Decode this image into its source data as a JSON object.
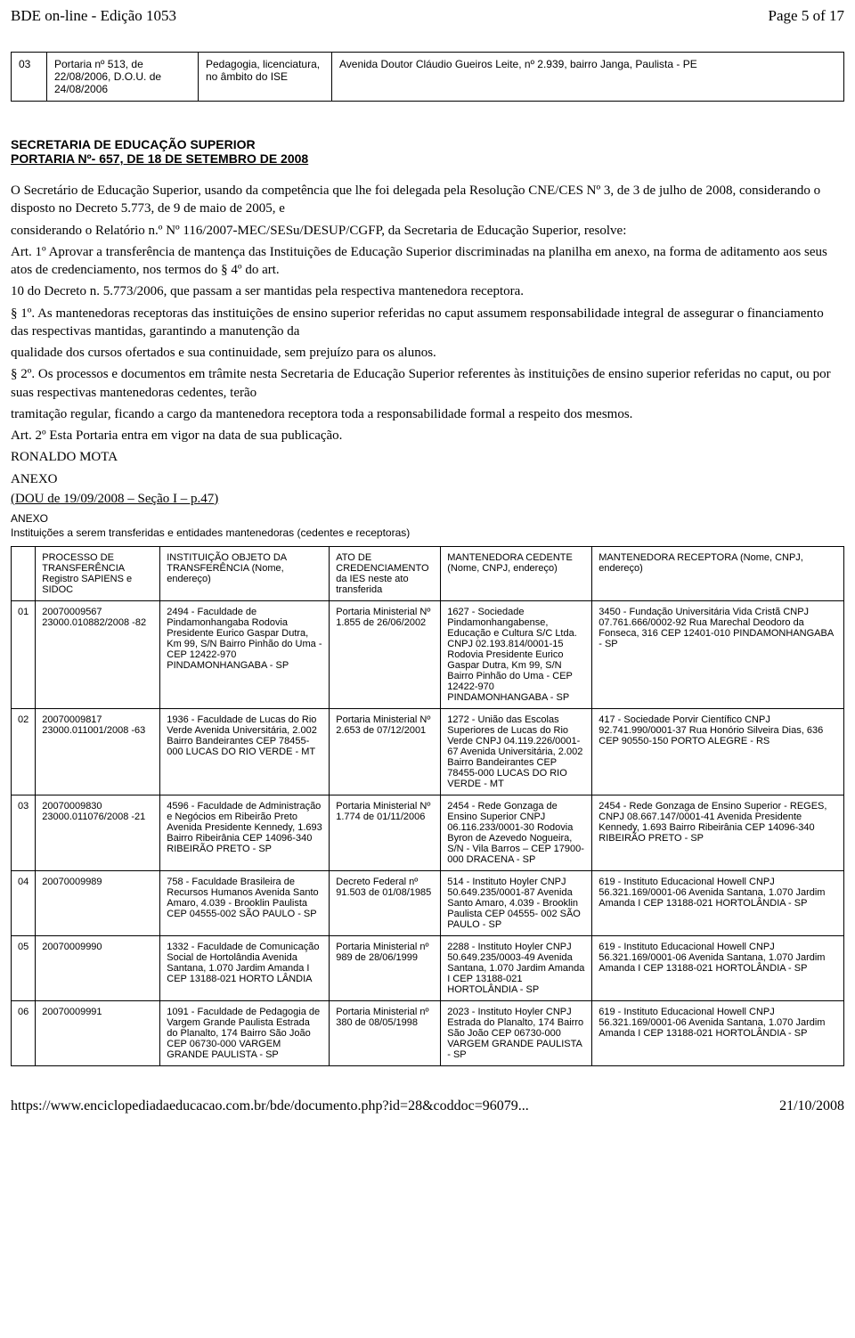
{
  "header": {
    "left": "BDE on-line - Edição 1053",
    "right": "Page 5 of 17"
  },
  "top_table": {
    "idx": "03",
    "c1": "Portaria nº 513, de 22/08/2006, D.O.U. de 24/08/2006",
    "c2": "Pedagogia, licenciatura, no âmbito do ISE",
    "c3": "Avenida Doutor Cláudio Gueiros Leite, nº 2.939, bairro Janga, Paulista - PE"
  },
  "section": {
    "title": "SECRETARIA DE EDUCAÇÃO SUPERIOR",
    "sub": "PORTARIA Nº- 657, DE 18 DE SETEMBRO DE 2008"
  },
  "paragraphs": [
    "O Secretário de Educação Superior, usando da competência que lhe foi delegada pela Resolução CNE/CES Nº 3, de 3 de julho de 2008, considerando o disposto no Decreto 5.773, de 9 de maio de 2005, e",
    "considerando o Relatório n.º Nº 116/2007-MEC/SESu/DESUP/CGFP, da Secretaria de Educação Superior, resolve:",
    "Art. 1º Aprovar a transferência de mantença das Instituições de Educação Superior discriminadas na planilha em anexo, na forma de aditamento aos seus atos de credenciamento, nos termos do § 4º do art.",
    "10 do Decreto n. 5.773/2006, que passam a ser mantidas pela respectiva mantenedora receptora.",
    "§ 1º. As mantenedoras receptoras das instituições de ensino superior referidas no caput assumem responsabilidade integral de assegurar o financiamento das respectivas mantidas, garantindo a manutenção da",
    "qualidade dos cursos ofertados e sua continuidade, sem prejuízo para os alunos.",
    "§ 2º. Os processos e documentos em trâmite nesta Secretaria de Educação Superior referentes às instituições de ensino superior referidas no caput, ou por suas respectivas mantenedoras cedentes, terão",
    "tramitação regular, ficando a cargo da mantenedora receptora toda a responsabilidade formal a respeito dos mesmos.",
    "Art. 2º Esta Portaria entra em vigor na data de sua publicação.",
    "RONALDO MOTA",
    "ANEXO"
  ],
  "dou": "(DOU de 19/09/2008 – Seção I – p.47)",
  "anexo_small1": "ANEXO",
  "anexo_small2": "Instituições a serem transferidas e entidades mantenedoras (cedentes e receptoras)",
  "columns": [
    "",
    "PROCESSO DE TRANSFERÊNCIA Registro SAPIENS e SIDOC",
    "INSTITUIÇÃO OBJETO DA TRANSFERÊNCIA (Nome, endereço)",
    "ATO DE CREDENCIAMENTO da IES neste ato transferida",
    "MANTENEDORA CEDENTE (Nome, CNPJ, endereço)",
    "MANTENEDORA RECEPTORA (Nome, CNPJ, endereço)"
  ],
  "rows": [
    {
      "idx": "01",
      "proc": "20070009567 23000.010882/2008 -82",
      "inst": "2494 - Faculdade de Pindamonhangaba Rodovia Presidente Eurico Gaspar Dutra, Km 99, S/N Bairro Pinhão do Uma - CEP 12422-970 PINDAMONHANGABA - SP",
      "ato": "Portaria Ministerial Nº 1.855 de 26/06/2002",
      "ced": "1627 - Sociedade Pindamonhangabense, Educação e Cultura S/C Ltda. CNPJ 02.193.814/0001-15 Rodovia Presidente Eurico Gaspar Dutra, Km 99, S/N Bairro Pinhão do Uma - CEP 12422-970 PINDAMONHANGABA - SP",
      "rec": "3450 - Fundação Universitária Vida Cristã CNPJ 07.761.666/0002-92 Rua Marechal Deodoro da Fonseca, 316 CEP 12401-010 PINDAMONHANGABA - SP"
    },
    {
      "idx": "02",
      "proc": "20070009817 23000.011001/2008 -63",
      "inst": "1936 - Faculdade de Lucas do Rio Verde Avenida Universitária, 2.002 Bairro Bandeirantes CEP 78455-000 LUCAS DO RIO VERDE - MT",
      "ato": "Portaria Ministerial Nº 2.653 de 07/12/2001",
      "ced": "1272 - União das Escolas Superiores de Lucas do Rio Verde CNPJ 04.119.226/0001-67 Avenida Universitária, 2.002 Bairro Bandeirantes CEP 78455-000 LUCAS DO RIO VERDE - MT",
      "rec": "417 - Sociedade Porvir Científico CNPJ 92.741.990/0001-37 Rua Honório Silveira Dias, 636 CEP 90550-150 PORTO ALEGRE - RS"
    },
    {
      "idx": "03",
      "proc": "20070009830 23000.011076/2008 -21",
      "inst": "4596 - Faculdade de Administração e Negócios em Ribeirão Preto Avenida Presidente Kennedy, 1.693 Bairro Ribeirânia CEP 14096-340 RIBEIRÃO PRETO - SP",
      "ato": "Portaria Ministerial Nº 1.774 de 01/11/2006",
      "ced": "2454 - Rede Gonzaga de Ensino Superior CNPJ 06.116.233/0001-30 Rodovia Byron de Azevedo Nogueira, S/N - Vila Barros – CEP 17900-000 DRACENA - SP",
      "rec": "2454 - Rede Gonzaga de Ensino Superior - REGES, CNPJ 08.667.147/0001-41 Avenida Presidente Kennedy, 1.693 Bairro Ribeirânia CEP 14096-340 RIBEIRÃO PRETO - SP"
    },
    {
      "idx": "04",
      "proc": "20070009989",
      "inst": "758 - Faculdade Brasileira de Recursos Humanos Avenida Santo Amaro, 4.039 - Brooklin Paulista CEP 04555-002 SÃO PAULO - SP",
      "ato": "Decreto Federal nº 91.503 de 01/08/1985",
      "ced": "514 - Instituto Hoyler CNPJ 50.649.235/0001-87 Avenida Santo Amaro, 4.039 - Brooklin Paulista CEP 04555- 002 SÃO PAULO - SP",
      "rec": "619 - Instituto Educacional Howell CNPJ 56.321.169/0001-06 Avenida Santana, 1.070 Jardim Amanda I CEP 13188-021 HORTOLÂNDIA - SP"
    },
    {
      "idx": "05",
      "proc": "20070009990",
      "inst": "1332 - Faculdade de Comunicação Social de Hortolândia Avenida Santana, 1.070 Jardim Amanda I CEP 13188-021 HORTO LÂNDIA",
      "ato": "Portaria Ministerial nº 989 de 28/06/1999",
      "ced": "2288 - Instituto Hoyler CNPJ 50.649.235/0003-49 Avenida Santana, 1.070 Jardim Amanda I CEP 13188-021 HORTOLÂNDIA - SP",
      "rec": "619 - Instituto Educacional Howell CNPJ 56.321.169/0001-06 Avenida Santana, 1.070 Jardim Amanda I CEP 13188-021 HORTOLÂNDIA - SP"
    },
    {
      "idx": "06",
      "proc": "20070009991",
      "inst": "1091 - Faculdade de Pedagogia de Vargem Grande Paulista Estrada do Planalto, 174 Bairro São João CEP 06730-000 VARGEM GRANDE PAULISTA - SP",
      "ato": "Portaria Ministerial nº 380 de 08/05/1998",
      "ced": "2023 - Instituto Hoyler CNPJ Estrada do Planalto, 174 Bairro São João CEP 06730-000 VARGEM GRANDE PAULISTA - SP",
      "rec": "619 - Instituto Educacional Howell CNPJ 56.321.169/0001-06 Avenida Santana, 1.070 Jardim Amanda I CEP 13188-021 HORTOLÂNDIA - SP"
    }
  ],
  "footer": {
    "left": "https://www.enciclopediadaeducacao.com.br/bde/documento.php?id=28&coddoc=96079...",
    "right": "21/10/2008"
  }
}
